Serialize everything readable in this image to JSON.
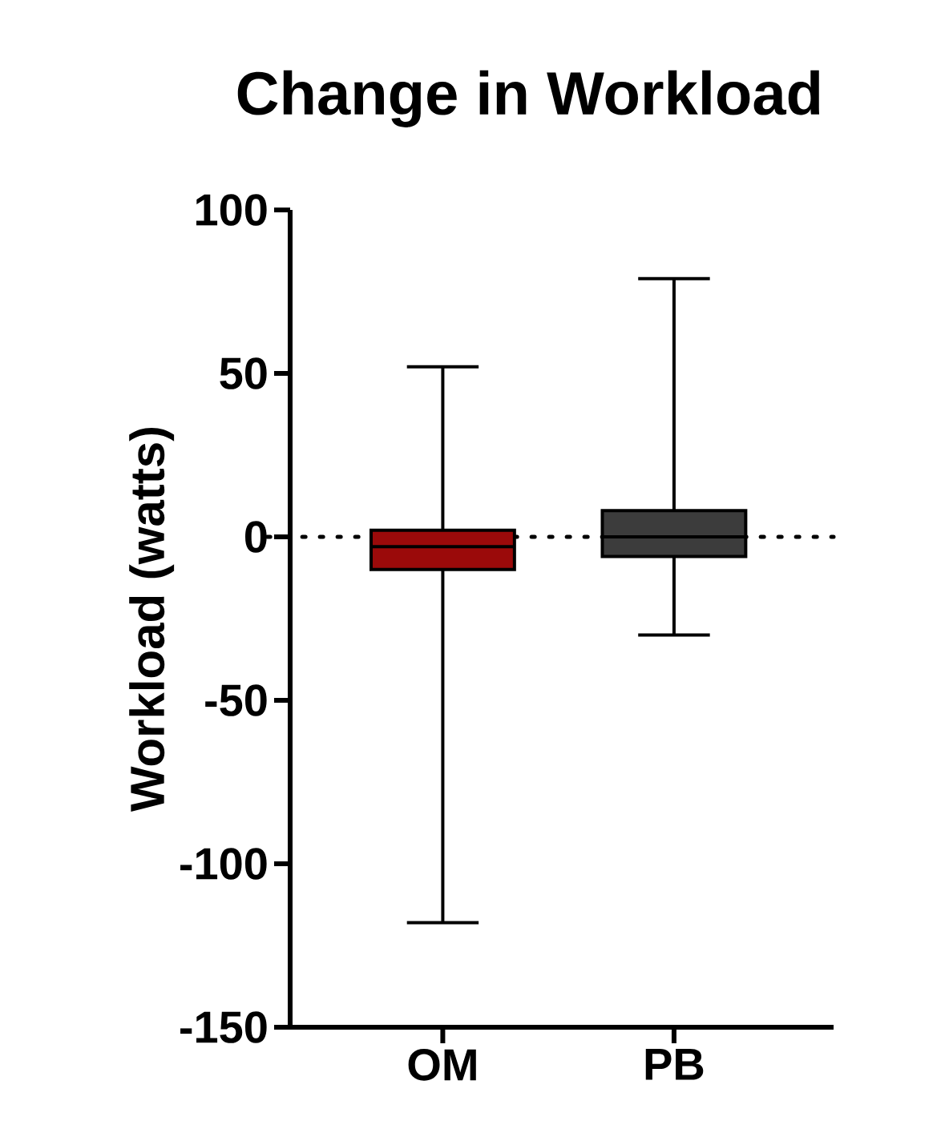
{
  "chart_data": {
    "type": "box",
    "title": "Change in Workload",
    "ylabel": "Workload (watts)",
    "categories": [
      "OM",
      "PB"
    ],
    "boxes": [
      {
        "low": -118,
        "q1": -10,
        "median": -3,
        "q3": 2,
        "high": 52
      },
      {
        "low": -30,
        "q1": -6,
        "median": 0,
        "q3": 8,
        "high": 79
      }
    ],
    "colors": [
      "#9b0a0a",
      "#3c3c3c"
    ],
    "ylim": [
      -150,
      100
    ],
    "yticks": [
      -150,
      -100,
      -50,
      0,
      50,
      100
    ],
    "ref_lines": [
      {
        "axis": "y",
        "value": 0,
        "color": "#000000",
        "line_style": "dotted"
      }
    ]
  }
}
